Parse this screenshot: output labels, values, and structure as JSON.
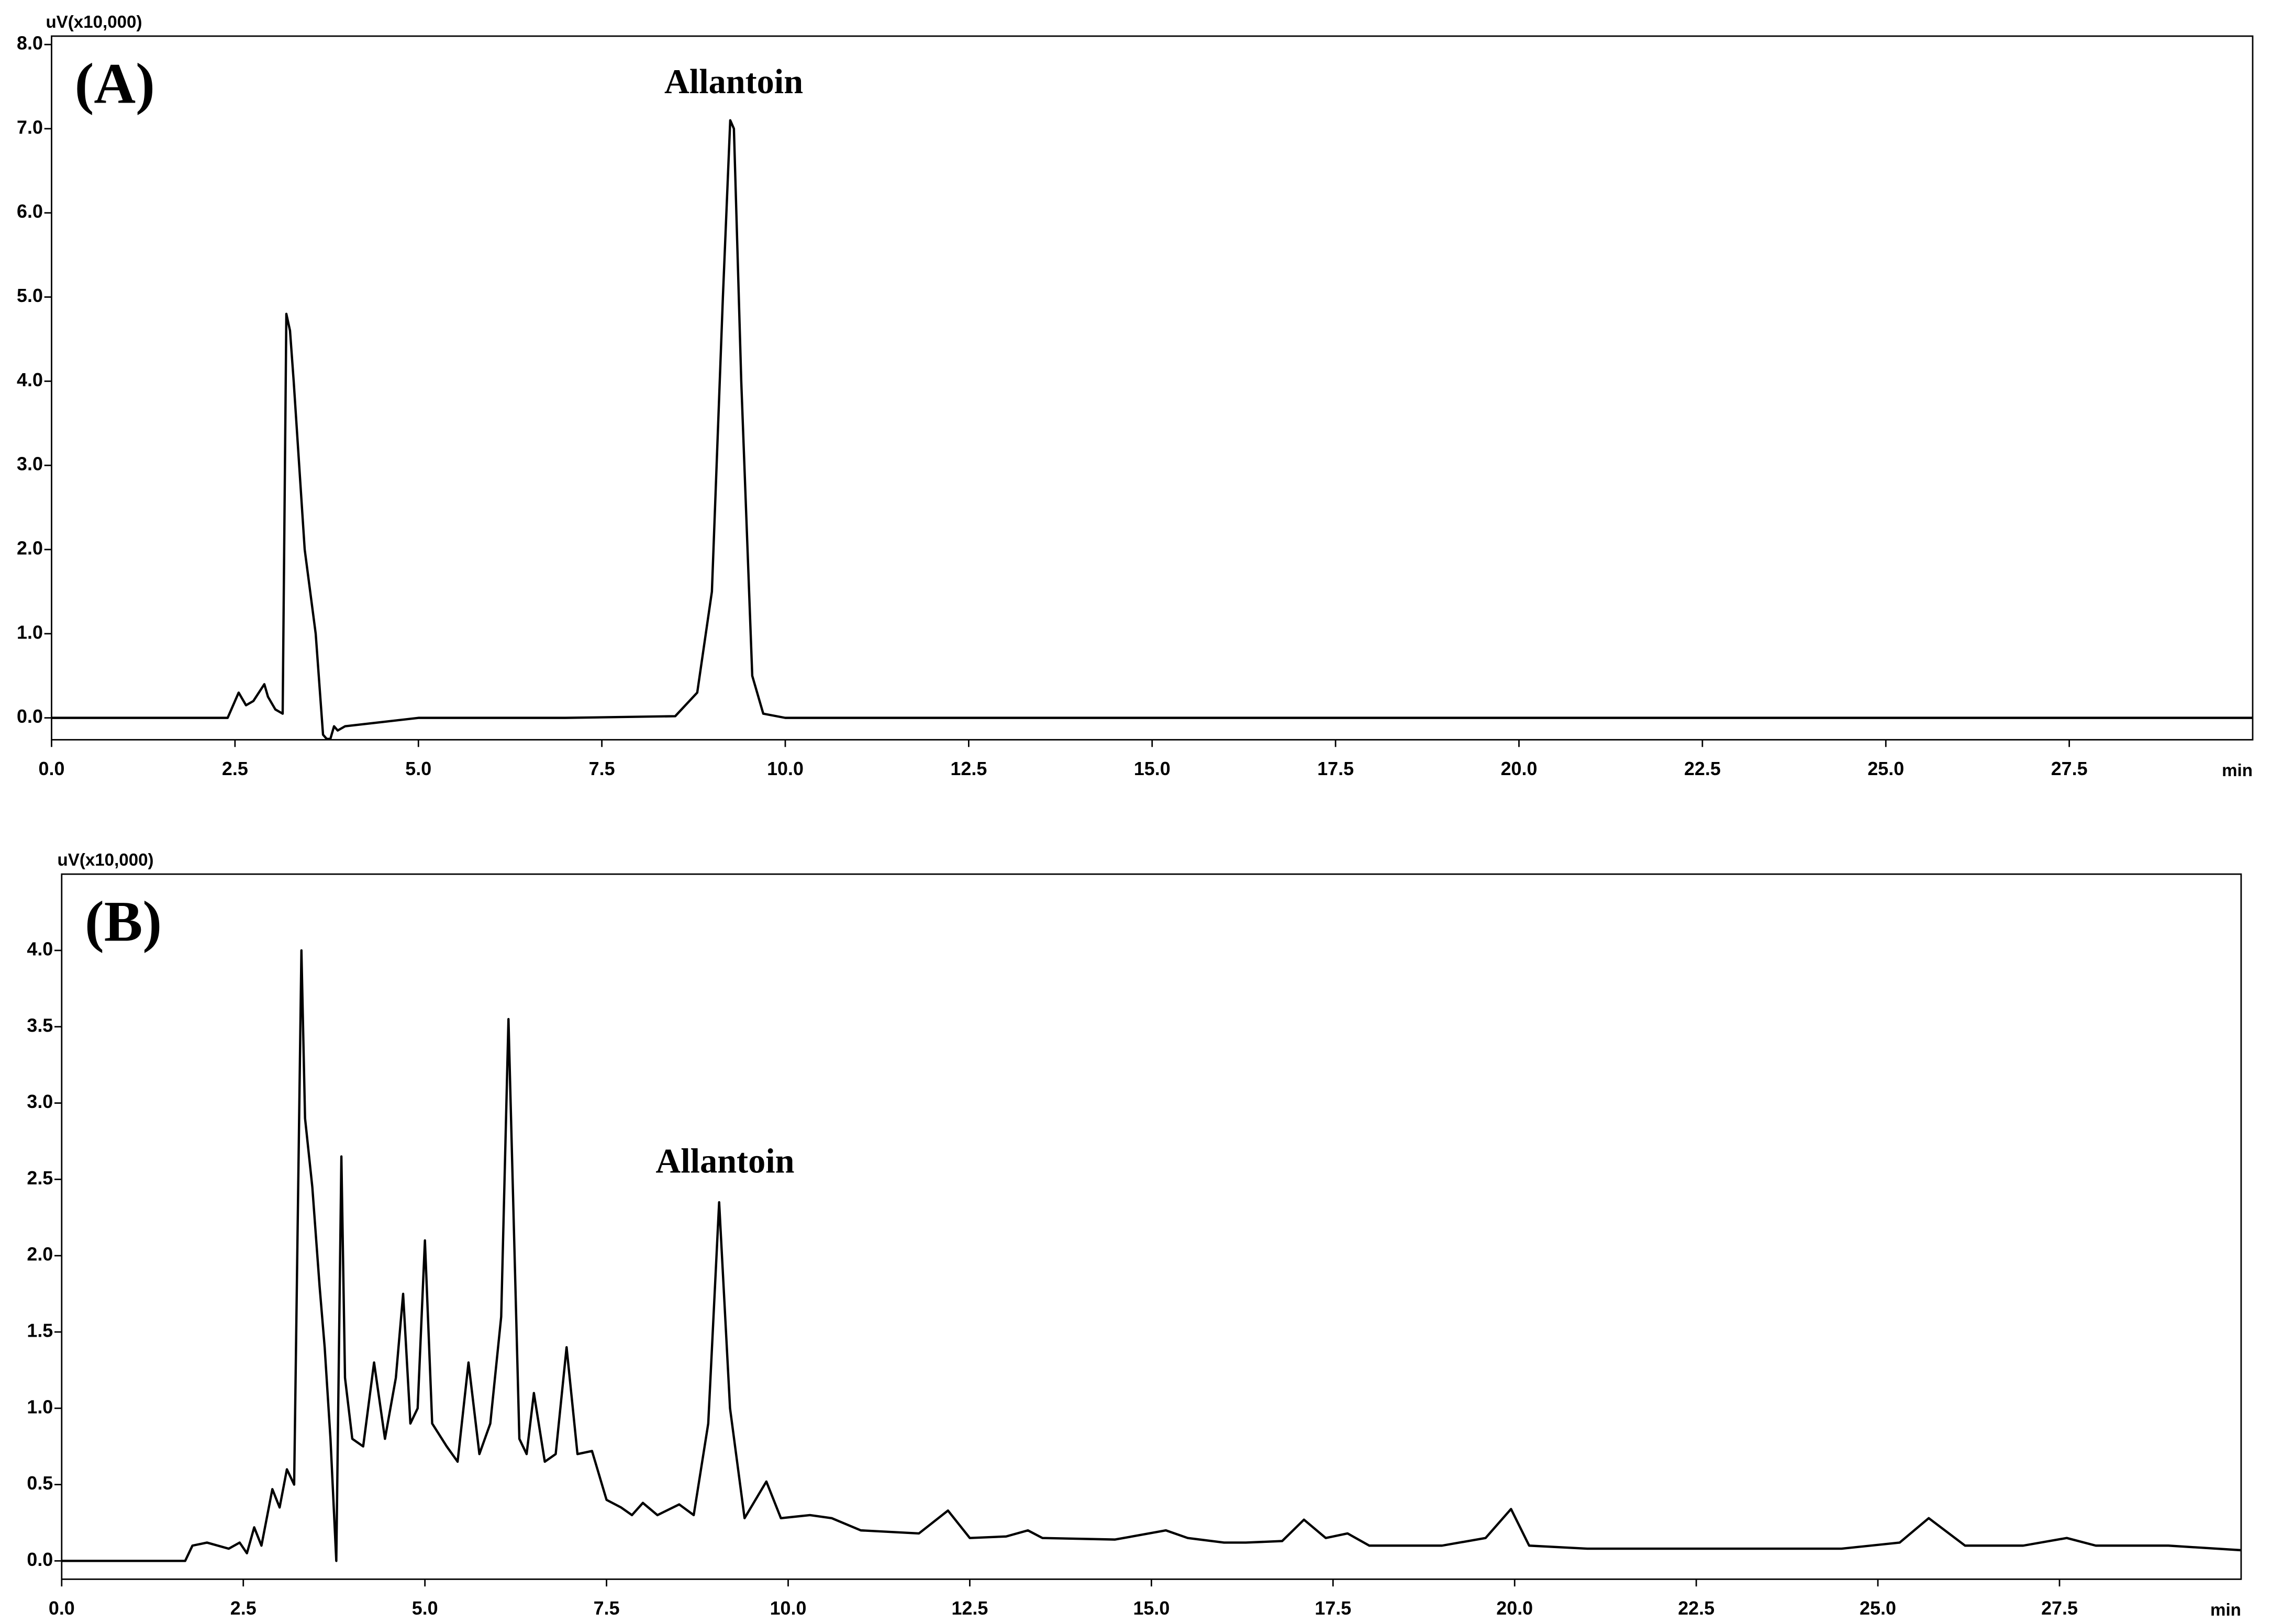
{
  "chart_data": [
    {
      "type": "line",
      "panel_label": "(A)",
      "peak_label": "Allantoin",
      "y_axis_label": "uV(x10,000)",
      "x_axis_label": "min",
      "x": [
        0,
        2.4,
        2.55,
        2.65,
        2.75,
        2.9,
        2.95,
        3.05,
        3.15,
        3.2,
        3.25,
        3.3,
        3.45,
        3.6,
        3.7,
        3.75,
        3.8,
        3.85,
        3.9,
        4.0,
        4.5,
        5,
        7,
        8.5,
        8.8,
        9.0,
        9.15,
        9.25,
        9.3,
        9.4,
        9.55,
        9.7,
        10,
        10.5,
        30
      ],
      "y": [
        0,
        0,
        0.3,
        0.15,
        0.2,
        0.4,
        0.25,
        0.1,
        0.05,
        4.8,
        4.6,
        4.0,
        2.0,
        1.0,
        -0.2,
        -0.25,
        -0.25,
        -0.1,
        -0.15,
        -0.1,
        -0.05,
        0,
        0,
        0.02,
        0.3,
        1.5,
        5.0,
        7.1,
        7.0,
        4.0,
        0.5,
        0.05,
        0,
        0,
        0
      ],
      "color": "#000000",
      "xlim": [
        0,
        30
      ],
      "ylim": [
        -0.26,
        8.1
      ],
      "xticks": [
        {
          "value": 0,
          "label": "0.0"
        },
        {
          "value": 2.5,
          "label": "2.5"
        },
        {
          "value": 5,
          "label": "5.0"
        },
        {
          "value": 7.5,
          "label": "7.5"
        },
        {
          "value": 10,
          "label": "10.0"
        },
        {
          "value": 12.5,
          "label": "12.5"
        },
        {
          "value": 15,
          "label": "15.0"
        },
        {
          "value": 17.5,
          "label": "17.5"
        },
        {
          "value": 20,
          "label": "20.0"
        },
        {
          "value": 22.5,
          "label": "22.5"
        },
        {
          "value": 25,
          "label": "25.0"
        },
        {
          "value": 27.5,
          "label": "27.5"
        }
      ],
      "yticks": [
        {
          "value": 0,
          "label": "0.0"
        },
        {
          "value": 1,
          "label": "1.0"
        },
        {
          "value": 2,
          "label": "2.0"
        },
        {
          "value": 3,
          "label": "3.0"
        },
        {
          "value": 4,
          "label": "4.0"
        },
        {
          "value": 5,
          "label": "5.0"
        },
        {
          "value": 6,
          "label": "6.0"
        },
        {
          "value": 7,
          "label": "7.0"
        },
        {
          "value": 8,
          "label": "8.0"
        }
      ],
      "grid": false
    },
    {
      "type": "line",
      "panel_label": "(B)",
      "peak_label": "Allantoin",
      "y_axis_label": "uV(x10,000)",
      "x_axis_label": "min",
      "x": [
        0,
        1.7,
        1.8,
        2.0,
        2.3,
        2.45,
        2.55,
        2.65,
        2.75,
        2.9,
        3.0,
        3.1,
        3.2,
        3.3,
        3.35,
        3.45,
        3.55,
        3.62,
        3.7,
        3.78,
        3.85,
        3.9,
        4.0,
        4.15,
        4.3,
        4.45,
        4.6,
        4.7,
        4.8,
        4.9,
        5.0,
        5.1,
        5.3,
        5.45,
        5.6,
        5.75,
        5.9,
        6.05,
        6.15,
        6.3,
        6.4,
        6.5,
        6.65,
        6.8,
        6.95,
        7.1,
        7.3,
        7.5,
        7.7,
        7.85,
        8.0,
        8.2,
        8.5,
        8.7,
        8.9,
        9.05,
        9.2,
        9.4,
        9.7,
        9.9,
        10.3,
        10.6,
        11,
        11.8,
        12.2,
        12.5,
        13,
        13.3,
        13.5,
        14.5,
        15.2,
        15.5,
        16,
        16.3,
        16.8,
        17.1,
        17.4,
        17.7,
        18,
        19,
        19.6,
        19.95,
        20.2,
        21,
        22.5,
        24.5,
        25.3,
        25.7,
        26.2,
        27,
        27.6,
        28,
        29,
        30
      ],
      "y": [
        0,
        0,
        0.1,
        0.12,
        0.08,
        0.12,
        0.05,
        0.22,
        0.1,
        0.47,
        0.35,
        0.6,
        0.5,
        4.0,
        2.9,
        2.45,
        1.8,
        1.4,
        0.8,
        0.0,
        2.65,
        1.2,
        0.8,
        0.75,
        1.3,
        0.8,
        1.2,
        1.75,
        0.9,
        1.0,
        2.1,
        0.9,
        0.75,
        0.65,
        1.3,
        0.7,
        0.9,
        1.6,
        3.55,
        0.8,
        0.7,
        1.1,
        0.65,
        0.7,
        1.4,
        0.7,
        0.72,
        0.4,
        0.35,
        0.3,
        0.38,
        0.3,
        0.37,
        0.3,
        0.9,
        2.35,
        1.0,
        0.28,
        0.52,
        0.28,
        0.3,
        0.28,
        0.2,
        0.18,
        0.33,
        0.15,
        0.16,
        0.2,
        0.15,
        0.14,
        0.2,
        0.15,
        0.12,
        0.12,
        0.13,
        0.27,
        0.15,
        0.18,
        0.1,
        0.1,
        0.15,
        0.34,
        0.1,
        0.08,
        0.08,
        0.08,
        0.12,
        0.28,
        0.1,
        0.1,
        0.15,
        0.1,
        0.1,
        0.07
      ],
      "color": "#000000",
      "xlim": [
        0,
        30
      ],
      "ylim": [
        -0.12,
        4.5
      ],
      "xticks": [
        {
          "value": 0,
          "label": "0.0"
        },
        {
          "value": 2.5,
          "label": "2.5"
        },
        {
          "value": 5,
          "label": "5.0"
        },
        {
          "value": 7.5,
          "label": "7.5"
        },
        {
          "value": 10,
          "label": "10.0"
        },
        {
          "value": 12.5,
          "label": "12.5"
        },
        {
          "value": 15,
          "label": "15.0"
        },
        {
          "value": 17.5,
          "label": "17.5"
        },
        {
          "value": 20,
          "label": "20.0"
        },
        {
          "value": 22.5,
          "label": "22.5"
        },
        {
          "value": 25,
          "label": "25.0"
        },
        {
          "value": 27.5,
          "label": "27.5"
        }
      ],
      "yticks": [
        {
          "value": 0,
          "label": "0.0"
        },
        {
          "value": 0.5,
          "label": "0.5"
        },
        {
          "value": 1,
          "label": "1.0"
        },
        {
          "value": 1.5,
          "label": "1.5"
        },
        {
          "value": 2,
          "label": "2.0"
        },
        {
          "value": 2.5,
          "label": "2.5"
        },
        {
          "value": 3,
          "label": "3.0"
        },
        {
          "value": 3.5,
          "label": "3.5"
        },
        {
          "value": 4,
          "label": "4.0"
        }
      ],
      "grid": false
    }
  ]
}
